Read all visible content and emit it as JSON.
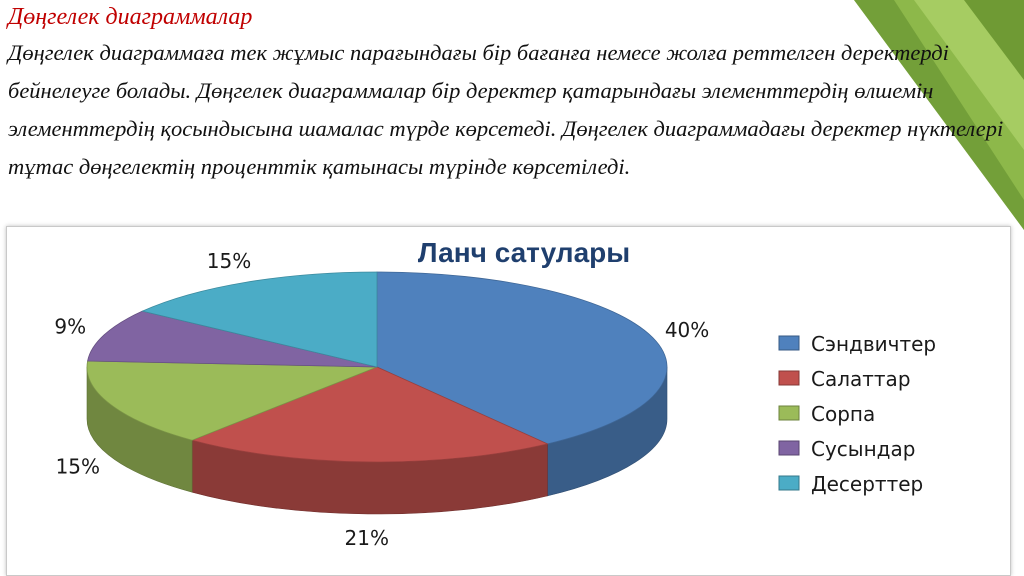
{
  "slide": {
    "title": "Дөңгелек диаграммалар",
    "body": "Дөңгелек диаграммаға тек жұмыс парағындағы бір бағанға немесе жолға реттелген деректерді бейнелеуге болады. Дөңгелек диаграммалар бір деректер қатарындағы элементтердің өлшемін элементтердің қосындысына шамалас түрде көрсетеді. Дөңгелек диаграммадағы деректер нүктелері тұтас дөңгелектің проценттік қатынасы түрінде көрсетіледі."
  },
  "chart_data": {
    "type": "pie",
    "style": "3d",
    "title": "Ланч сатулары",
    "categories": [
      "Сэндвичтер",
      "Салаттар",
      "Сорпа",
      "Сусындар",
      "Десерттер"
    ],
    "values": [
      40,
      21,
      15,
      9,
      15
    ],
    "labels": [
      "40%",
      "21%",
      "15%",
      "9%",
      "15%"
    ],
    "colors": [
      "#4f81bd",
      "#c0504d",
      "#9bbb59",
      "#8064a2",
      "#4bacc6"
    ],
    "legend_position": "right"
  }
}
